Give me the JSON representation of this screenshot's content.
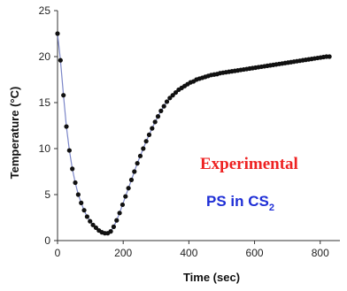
{
  "chart_data": {
    "type": "line",
    "xlabel": "Time (sec)",
    "ylabel": "Temperature (°C)",
    "xlim": [
      0,
      860
    ],
    "ylim": [
      0,
      25
    ],
    "xticks": [
      0,
      200,
      400,
      600,
      800
    ],
    "yticks": [
      0,
      5,
      10,
      15,
      20,
      25
    ],
    "grid": false,
    "series": [
      {
        "color": "#111111",
        "line_color": "#7b86c8",
        "x": [
          0,
          9,
          18,
          27,
          36,
          45,
          54,
          63,
          72,
          81,
          90,
          99,
          108,
          117,
          126,
          135,
          144,
          153,
          162,
          171,
          180,
          189,
          198,
          207,
          216,
          225,
          234,
          243,
          252,
          261,
          270,
          279,
          288,
          297,
          306,
          315,
          324,
          333,
          342,
          351,
          360,
          369,
          378,
          387,
          396,
          405,
          414,
          423,
          432,
          441,
          450,
          459,
          468,
          477,
          486,
          495,
          504,
          513,
          522,
          531,
          540,
          549,
          558,
          567,
          576,
          585,
          594,
          603,
          612,
          621,
          630,
          639,
          648,
          657,
          666,
          675,
          684,
          693,
          702,
          711,
          720,
          729,
          738,
          747,
          756,
          765,
          774,
          783,
          792,
          801,
          810,
          819,
          828
        ],
        "y": [
          22.5,
          19.6,
          15.8,
          12.4,
          9.8,
          7.8,
          6.3,
          5.0,
          4.1,
          3.3,
          2.6,
          2.1,
          1.7,
          1.4,
          1.1,
          0.9,
          0.8,
          0.8,
          1.0,
          1.5,
          2.2,
          3.0,
          3.9,
          4.8,
          5.7,
          6.6,
          7.5,
          8.4,
          9.2,
          10.0,
          10.8,
          11.5,
          12.2,
          12.9,
          13.5,
          14.1,
          14.6,
          15.1,
          15.5,
          15.8,
          16.1,
          16.4,
          16.6,
          16.8,
          17.0,
          17.2,
          17.3,
          17.5,
          17.6,
          17.7,
          17.8,
          17.9,
          18.0,
          18.05,
          18.1,
          18.2,
          18.25,
          18.3,
          18.35,
          18.4,
          18.45,
          18.5,
          18.55,
          18.6,
          18.65,
          18.7,
          18.75,
          18.8,
          18.85,
          18.9,
          18.95,
          19.0,
          19.05,
          19.1,
          19.15,
          19.2,
          19.25,
          19.3,
          19.35,
          19.4,
          19.45,
          19.5,
          19.55,
          19.6,
          19.65,
          19.7,
          19.75,
          19.8,
          19.85,
          19.9,
          19.95,
          20.0,
          20.0
        ]
      }
    ],
    "annotations": [
      {
        "text": "Experimental",
        "color": "#ee2222"
      },
      {
        "text": "PS in CS",
        "subscript": "2",
        "color": "#1f2fd6"
      }
    ]
  }
}
